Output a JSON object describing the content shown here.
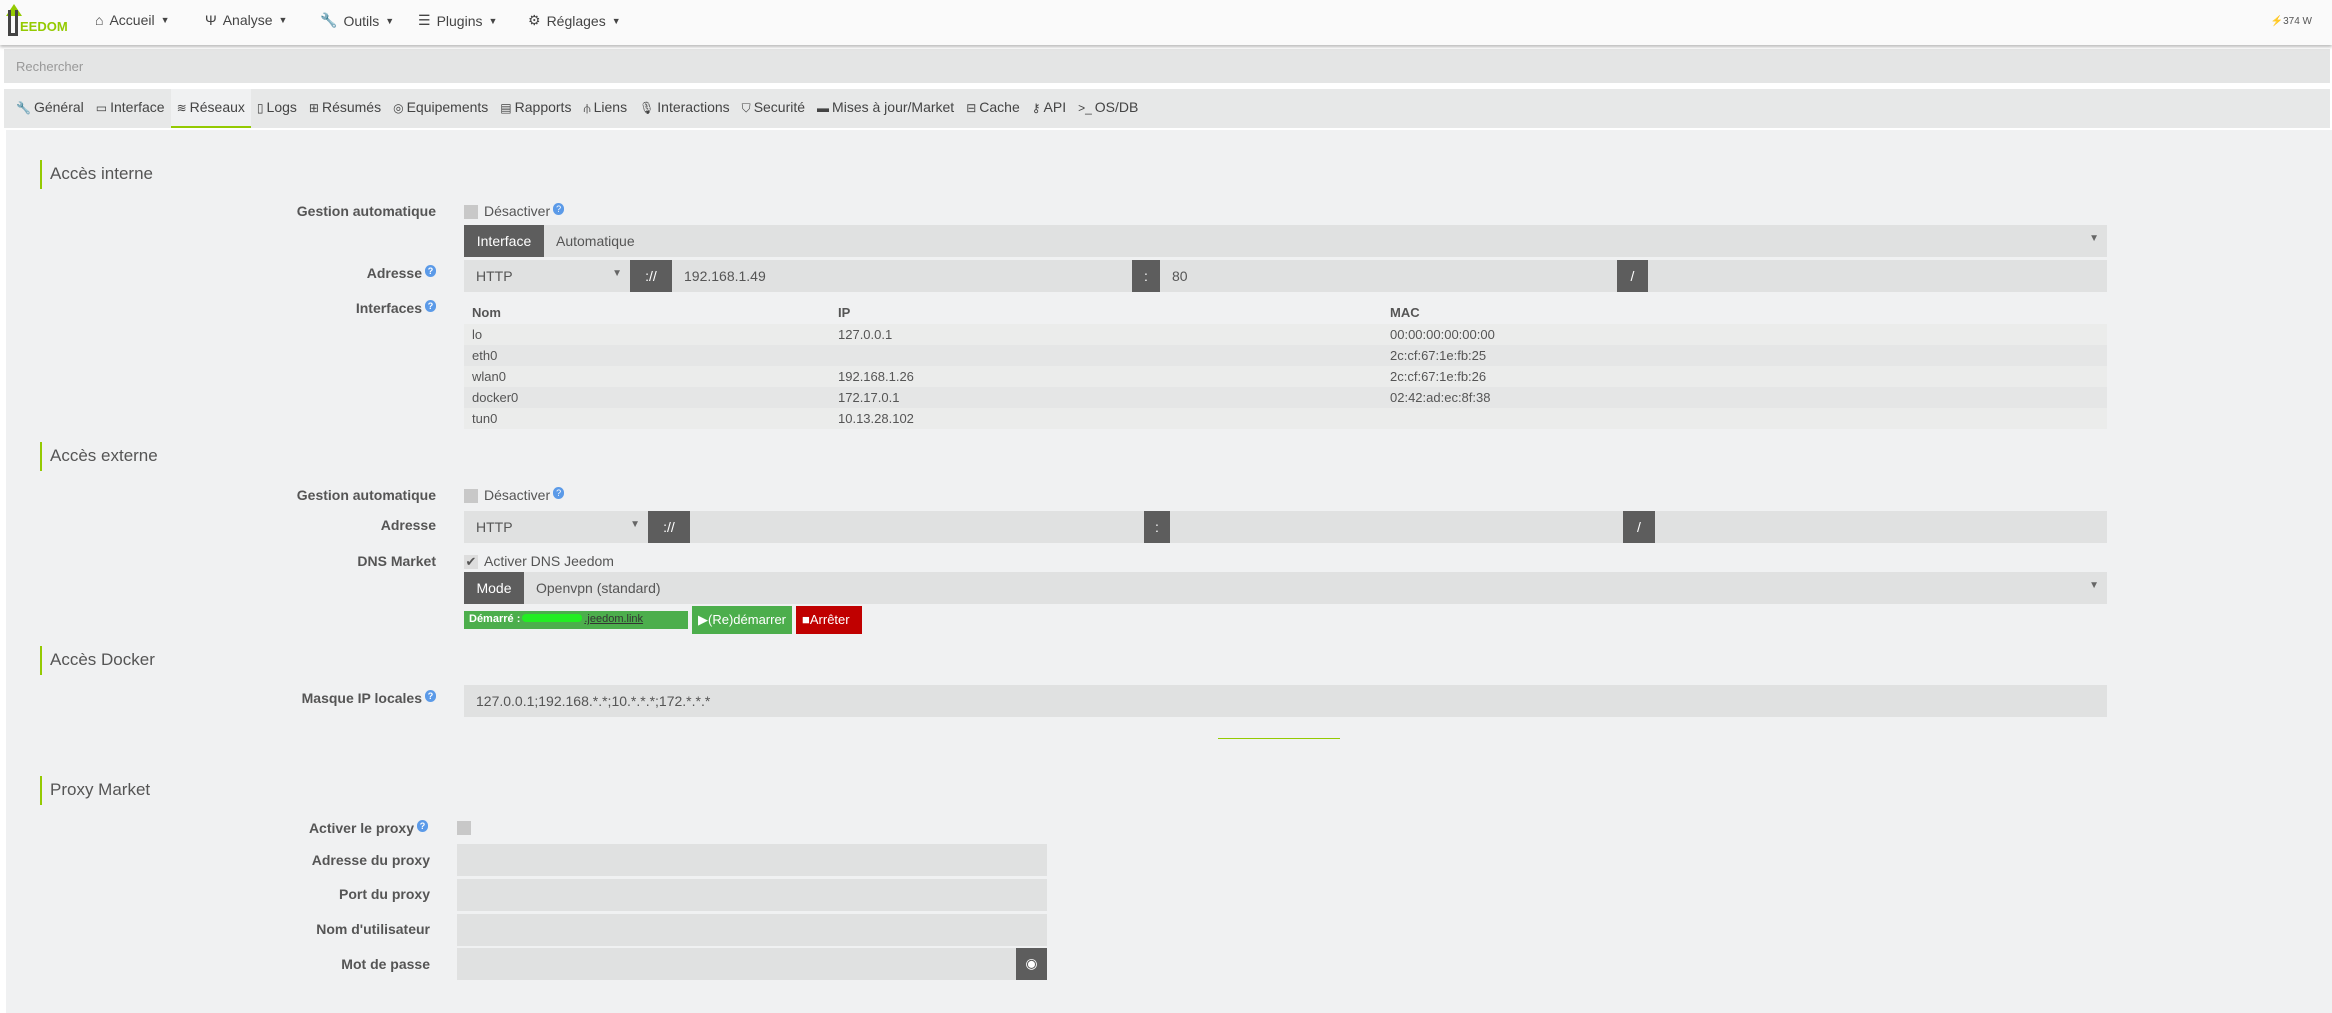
{
  "nav": {
    "logo_text": "EEDOM",
    "menus": [
      "Accueil",
      "Analyse",
      "Outils",
      "Plugins",
      "Réglages"
    ],
    "power": "374 W"
  },
  "search": {
    "placeholder": "Rechercher"
  },
  "tabs": [
    "Général",
    "Interface",
    "Réseaux",
    "Logs",
    "Résumés",
    "Equipements",
    "Rapports",
    "Liens",
    "Interactions",
    "Securité",
    "Mises à jour/Market",
    "Cache",
    "API",
    "OS/DB"
  ],
  "active_tab": "Réseaux",
  "internal": {
    "title": "Accès interne",
    "auto_label": "Gestion automatique",
    "disable": "Désactiver",
    "iface_btn": "Interface",
    "iface_value": "Automatique",
    "addr_label": "Adresse",
    "protocol": "HTTP",
    "sep1": "://",
    "ip": "192.168.1.49",
    "sep2": ":",
    "port": "80",
    "sep3": "/",
    "ifaces_label": "Interfaces",
    "table": {
      "headers": [
        "Nom",
        "IP",
        "MAC"
      ],
      "rows": [
        [
          "lo",
          "127.0.0.1",
          "00:00:00:00:00:00"
        ],
        [
          "eth0",
          "",
          "2c:cf:67:1e:fb:25"
        ],
        [
          "wlan0",
          "192.168.1.26",
          "2c:cf:67:1e:fb:26"
        ],
        [
          "docker0",
          "172.17.0.1",
          "02:42:ad:ec:8f:38"
        ],
        [
          "tun0",
          "10.13.28.102",
          ""
        ]
      ]
    }
  },
  "external": {
    "title": "Accès externe",
    "auto_label": "Gestion automatique",
    "disable": "Désactiver",
    "addr_label": "Adresse",
    "protocol": "HTTP",
    "sep1": "://",
    "sep2": ":",
    "sep3": "/",
    "dns_label": "DNS Market",
    "dns_check": "Activer DNS Jeedom",
    "dns_checked": true,
    "mode_btn": "Mode",
    "mode_value": "Openvpn (standard)",
    "status": "Démarré :",
    "status_link": ".jeedom.link",
    "restart": "(Re)démarrer",
    "stop": "Arrêter",
    "colors": {
      "started": "#4cae4c",
      "stop": "#c00000"
    }
  },
  "docker": {
    "title": "Accès Docker",
    "mask_label": "Masque IP locales",
    "mask_value": "127.0.0.1;192.168.*.*;10.*.*.*;172.*.*.*"
  },
  "proxy": {
    "title": "Proxy Market",
    "enable_label": "Activer le proxy",
    "address_label": "Adresse du proxy",
    "port_label": "Port du proxy",
    "user_label": "Nom d'utilisateur",
    "password_label": "Mot de passe"
  },
  "accent": "#94ca02"
}
